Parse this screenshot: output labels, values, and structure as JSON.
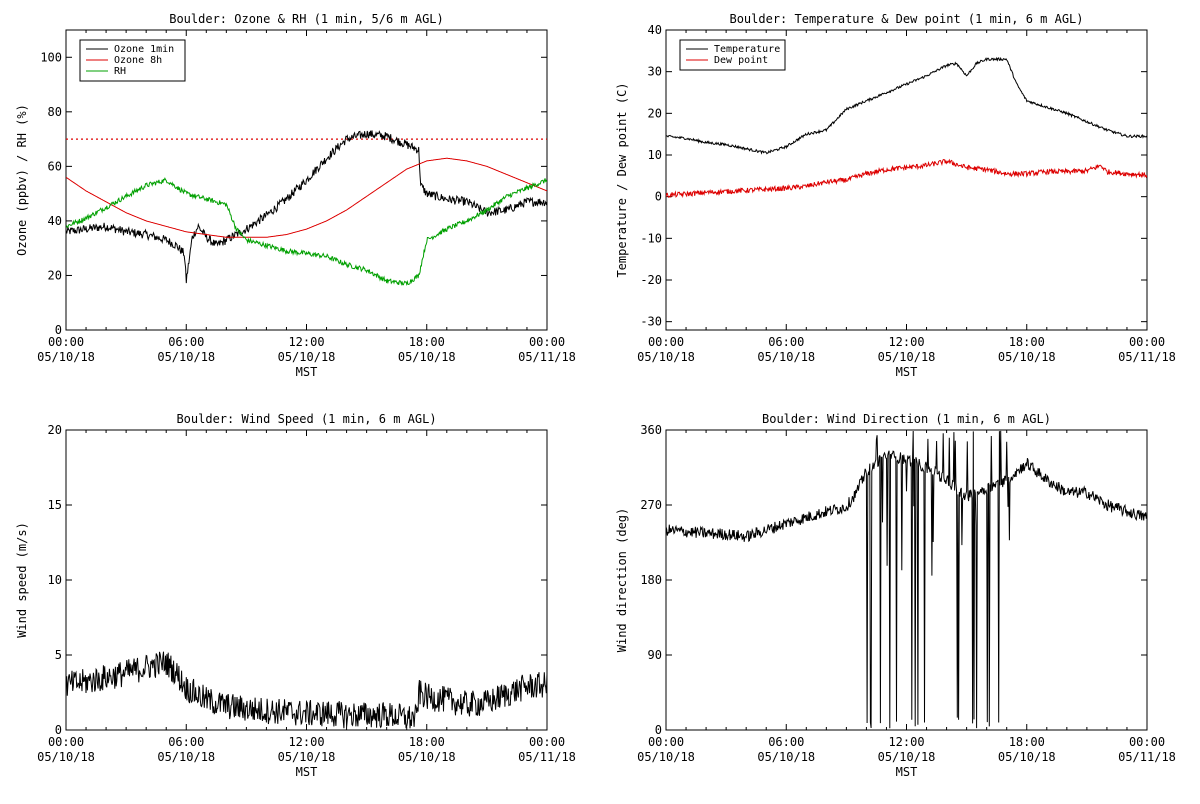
{
  "chart_data": [
    {
      "id": "ozone-rh",
      "type": "line",
      "title": "Boulder: Ozone & RH (1 min, 5/6 m AGL)",
      "xlabel": "MST",
      "ylabel": "Ozone (ppbv) / RH (%)",
      "ylim": [
        0,
        110
      ],
      "yticks": [
        0,
        20,
        40,
        60,
        80,
        100
      ],
      "xlim": [
        0,
        24
      ],
      "xticks": [
        {
          "h": 0,
          "time": "00:00",
          "date": "05/10/18"
        },
        {
          "h": 6,
          "time": "06:00",
          "date": "05/10/18"
        },
        {
          "h": 12,
          "time": "12:00",
          "date": "05/10/18"
        },
        {
          "h": 18,
          "time": "18:00",
          "date": "05/10/18"
        },
        {
          "h": 24,
          "time": "00:00",
          "date": "05/11/18"
        }
      ],
      "legend": "top-left",
      "reference_line": {
        "y": 70,
        "color": "#dd0000",
        "style": "dotted"
      },
      "series": [
        {
          "name": "Ozone 1min",
          "color": "#000000",
          "noise": 1.6,
          "points": [
            [
              0,
              36
            ],
            [
              1,
              37
            ],
            [
              2,
              38
            ],
            [
              3,
              36
            ],
            [
              4,
              35
            ],
            [
              5,
              33
            ],
            [
              5.5,
              31
            ],
            [
              5.9,
              28
            ],
            [
              6,
              18
            ],
            [
              6.3,
              34
            ],
            [
              6.6,
              38
            ],
            [
              7,
              34
            ],
            [
              7.5,
              31
            ],
            [
              8,
              33
            ],
            [
              9,
              37
            ],
            [
              10,
              42
            ],
            [
              11,
              48
            ],
            [
              12,
              55
            ],
            [
              13,
              63
            ],
            [
              14,
              70
            ],
            [
              15,
              72
            ],
            [
              16,
              71
            ],
            [
              17,
              68
            ],
            [
              17.6,
              66
            ],
            [
              17.7,
              53
            ],
            [
              18,
              50
            ],
            [
              19,
              48
            ],
            [
              20,
              47
            ],
            [
              21,
              43
            ],
            [
              22,
              44
            ],
            [
              23,
              47
            ],
            [
              24,
              47
            ]
          ]
        },
        {
          "name": "Ozone 8h",
          "color": "#dd0000",
          "noise": 0,
          "points": [
            [
              0,
              56
            ],
            [
              1,
              51
            ],
            [
              2,
              47
            ],
            [
              3,
              43
            ],
            [
              4,
              40
            ],
            [
              5,
              38
            ],
            [
              6,
              36
            ],
            [
              7,
              35
            ],
            [
              8,
              34
            ],
            [
              9,
              34
            ],
            [
              10,
              34
            ],
            [
              11,
              35
            ],
            [
              12,
              37
            ],
            [
              13,
              40
            ],
            [
              14,
              44
            ],
            [
              15,
              49
            ],
            [
              16,
              54
            ],
            [
              17,
              59
            ],
            [
              18,
              62
            ],
            [
              19,
              63
            ],
            [
              20,
              62
            ],
            [
              21,
              60
            ],
            [
              22,
              57
            ],
            [
              23,
              54
            ],
            [
              24,
              51
            ]
          ]
        },
        {
          "name": "RH",
          "color": "#00a000",
          "noise": 0.9,
          "points": [
            [
              0,
              38
            ],
            [
              1,
              41
            ],
            [
              2,
              45
            ],
            [
              3,
              49
            ],
            [
              4,
              53
            ],
            [
              5,
              55
            ],
            [
              6,
              50
            ],
            [
              7,
              48
            ],
            [
              8,
              46
            ],
            [
              8.5,
              37
            ],
            [
              9,
              33
            ],
            [
              10,
              31
            ],
            [
              11,
              29
            ],
            [
              12,
              28
            ],
            [
              13,
              27
            ],
            [
              14,
              24
            ],
            [
              15,
              22
            ],
            [
              16,
              18
            ],
            [
              17,
              17
            ],
            [
              17.6,
              20
            ],
            [
              18,
              33
            ],
            [
              19,
              37
            ],
            [
              20,
              40
            ],
            [
              21,
              44
            ],
            [
              22,
              49
            ],
            [
              23,
              52
            ],
            [
              24,
              55
            ]
          ]
        }
      ]
    },
    {
      "id": "temp-dew",
      "type": "line",
      "title": "Boulder: Temperature & Dew point (1 min, 6 m AGL)",
      "xlabel": "MST",
      "ylabel": "Temperature / Dew point (C)",
      "ylim": [
        -32,
        40
      ],
      "yticks": [
        -30,
        -20,
        -10,
        0,
        10,
        20,
        30,
        40
      ],
      "xlim": [
        0,
        24
      ],
      "xticks": [
        {
          "h": 0,
          "time": "00:00",
          "date": "05/10/18"
        },
        {
          "h": 6,
          "time": "06:00",
          "date": "05/10/18"
        },
        {
          "h": 12,
          "time": "12:00",
          "date": "05/10/18"
        },
        {
          "h": 18,
          "time": "18:00",
          "date": "05/10/18"
        },
        {
          "h": 24,
          "time": "00:00",
          "date": "05/11/18"
        }
      ],
      "legend": "top-left",
      "series": [
        {
          "name": "Temperature",
          "color": "#000000",
          "noise": 0.3,
          "points": [
            [
              0,
              14.5
            ],
            [
              1,
              14
            ],
            [
              2,
              13
            ],
            [
              3,
              12.5
            ],
            [
              4,
              11.5
            ],
            [
              5,
              10.5
            ],
            [
              6,
              12
            ],
            [
              7,
              15
            ],
            [
              8,
              16
            ],
            [
              9,
              21
            ],
            [
              10,
              23
            ],
            [
              11,
              25
            ],
            [
              12,
              27
            ],
            [
              13,
              29
            ],
            [
              14,
              31.5
            ],
            [
              14.5,
              32
            ],
            [
              15,
              29
            ],
            [
              15.5,
              32
            ],
            [
              16,
              33
            ],
            [
              17,
              33
            ],
            [
              17.5,
              27
            ],
            [
              18,
              23
            ],
            [
              19,
              21.5
            ],
            [
              20,
              20
            ],
            [
              21,
              18
            ],
            [
              22,
              16
            ],
            [
              23,
              14.5
            ],
            [
              24,
              14.5
            ]
          ]
        },
        {
          "name": "Dew point",
          "color": "#dd0000",
          "noise": 0.6,
          "points": [
            [
              0,
              0.3
            ],
            [
              2,
              1
            ],
            [
              4,
              1.5
            ],
            [
              6,
              2
            ],
            [
              7,
              2.5
            ],
            [
              8,
              3.5
            ],
            [
              9,
              4
            ],
            [
              10,
              5.5
            ],
            [
              11,
              6.5
            ],
            [
              12,
              7
            ],
            [
              13,
              7.5
            ],
            [
              14,
              8.5
            ],
            [
              15,
              7
            ],
            [
              16,
              6.5
            ],
            [
              17,
              5.5
            ],
            [
              18,
              5.5
            ],
            [
              19,
              6
            ],
            [
              20,
              6
            ],
            [
              21,
              6.2
            ],
            [
              21.7,
              7.5
            ],
            [
              22,
              6
            ],
            [
              23,
              5.5
            ],
            [
              24,
              5.2
            ]
          ]
        }
      ]
    },
    {
      "id": "wind-speed",
      "type": "line",
      "title": "Boulder: Wind Speed (1 min, 6 m AGL)",
      "xlabel": "MST",
      "ylabel": "Wind speed (m/s)",
      "ylim": [
        0,
        20
      ],
      "yticks": [
        0,
        5,
        10,
        15,
        20
      ],
      "xlim": [
        0,
        24
      ],
      "xticks": [
        {
          "h": 0,
          "time": "00:00",
          "date": "05/10/18"
        },
        {
          "h": 6,
          "time": "06:00",
          "date": "05/10/18"
        },
        {
          "h": 12,
          "time": "12:00",
          "date": "05/10/18"
        },
        {
          "h": 18,
          "time": "18:00",
          "date": "05/10/18"
        },
        {
          "h": 24,
          "time": "00:00",
          "date": "05/11/18"
        }
      ],
      "legend": "none",
      "series": [
        {
          "color": "#000000",
          "noise": 0.9,
          "points": [
            [
              0,
              3
            ],
            [
              1,
              3.2
            ],
            [
              2,
              3.5
            ],
            [
              3,
              3.8
            ],
            [
              4,
              4.2
            ],
            [
              5,
              4.5
            ],
            [
              5.5,
              3.8
            ],
            [
              6,
              2.8
            ],
            [
              7,
              2
            ],
            [
              8,
              1.6
            ],
            [
              9,
              1.4
            ],
            [
              10,
              1.3
            ],
            [
              11,
              1.2
            ],
            [
              12,
              1.1
            ],
            [
              13,
              1.1
            ],
            [
              14,
              1
            ],
            [
              15,
              1
            ],
            [
              16,
              1
            ],
            [
              17,
              0.8
            ],
            [
              17.5,
              0.8
            ],
            [
              17.6,
              2.5
            ],
            [
              18,
              2.2
            ],
            [
              19,
              2
            ],
            [
              20,
              1.7
            ],
            [
              21,
              1.8
            ],
            [
              22,
              2.4
            ],
            [
              23,
              2.9
            ],
            [
              24,
              3
            ]
          ]
        }
      ]
    },
    {
      "id": "wind-direction",
      "type": "line",
      "title": "Boulder: Wind Direction (1 min, 6 m AGL)",
      "xlabel": "MST",
      "ylabel": "Wind direction (deg)",
      "ylim": [
        0,
        360
      ],
      "yticks": [
        0,
        90,
        180,
        270,
        360
      ],
      "xlim": [
        0,
        24
      ],
      "xticks": [
        {
          "h": 0,
          "time": "00:00",
          "date": "05/10/18"
        },
        {
          "h": 6,
          "time": "06:00",
          "date": "05/10/18"
        },
        {
          "h": 12,
          "time": "12:00",
          "date": "05/10/18"
        },
        {
          "h": 18,
          "time": "18:00",
          "date": "05/10/18"
        },
        {
          "h": 24,
          "time": "00:00",
          "date": "05/11/18"
        }
      ],
      "legend": "none",
      "series": [
        {
          "color": "#000000",
          "noise": 7,
          "wrap_between": [
            9.8,
            17.8
          ],
          "points": [
            [
              0,
              240
            ],
            [
              1,
              238
            ],
            [
              2,
              236
            ],
            [
              3,
              235
            ],
            [
              4,
              232
            ],
            [
              5,
              240
            ],
            [
              6,
              248
            ],
            [
              7,
              255
            ],
            [
              8,
              262
            ],
            [
              9,
              268
            ],
            [
              9.5,
              285
            ],
            [
              10,
              310
            ],
            [
              11,
              330
            ],
            [
              12,
              325
            ],
            [
              13,
              315
            ],
            [
              14,
              300
            ],
            [
              15,
              280
            ],
            [
              16,
              290
            ],
            [
              17,
              300
            ],
            [
              18,
              320
            ],
            [
              19,
              300
            ],
            [
              20,
              285
            ],
            [
              21,
              285
            ],
            [
              22,
              270
            ],
            [
              23,
              262
            ],
            [
              24,
              255
            ]
          ]
        }
      ]
    }
  ]
}
